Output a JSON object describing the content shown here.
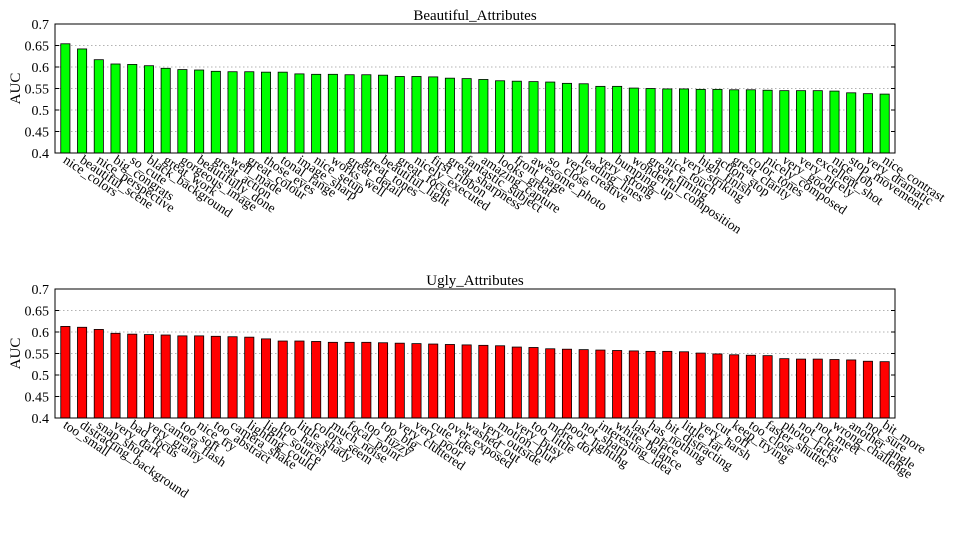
{
  "chart_data": [
    {
      "type": "bar",
      "title": "Beautiful_Attributes",
      "ylabel": "AUC",
      "xlabel": "",
      "ylim": [
        0.4,
        0.7
      ],
      "yticks": [
        "0.4",
        "0.45",
        "0.5",
        "0.55",
        "0.6",
        "0.65",
        "0.7"
      ],
      "grid": true,
      "color": "#00ff00",
      "categories": [
        "nice_colors",
        "beautiful_scene",
        "nice_perspective",
        "big_congrats",
        "so_cute",
        "black_background",
        "great_work",
        "gorgeous_image",
        "beautifully_done",
        "great_action",
        "well_made",
        "great_colour",
        "those_eyes",
        "tonal_range",
        "image_sharp",
        "nice_setup",
        "works_well",
        "great_detail",
        "great_tones",
        "beautiful_light",
        "great_focus",
        "nicely_executed",
        "first_ribbon",
        "great_sharpness",
        "fantastic_subject",
        "amazing_capture",
        "looks_great",
        "front_page",
        "awesome_photo",
        "so_close",
        "very_creative",
        "leading_lines",
        "very_strong",
        "bumping_up",
        "wonderful_composition",
        "great_timing",
        "nice_touch",
        "very_striking",
        "high_finish",
        "action_stop",
        "great_clarity",
        "color_tones",
        "nicely_composed",
        "very_good",
        "very_nicely",
        "excellent_shot",
        "nice_job",
        "stop_movement",
        "very_dramatic",
        "nice_contrast"
      ],
      "values": [
        0.654,
        0.642,
        0.617,
        0.607,
        0.606,
        0.603,
        0.597,
        0.594,
        0.593,
        0.59,
        0.589,
        0.589,
        0.588,
        0.588,
        0.584,
        0.583,
        0.583,
        0.582,
        0.582,
        0.581,
        0.578,
        0.578,
        0.577,
        0.574,
        0.573,
        0.571,
        0.568,
        0.567,
        0.566,
        0.565,
        0.562,
        0.561,
        0.555,
        0.555,
        0.551,
        0.55,
        0.549,
        0.549,
        0.548,
        0.548,
        0.547,
        0.547,
        0.546,
        0.545,
        0.545,
        0.545,
        0.544,
        0.54,
        0.538,
        0.537
      ]
    },
    {
      "type": "bar",
      "title": "Ugly_Attributes",
      "ylabel": "AUC",
      "xlabel": "",
      "ylim": [
        0.4,
        0.7
      ],
      "yticks": [
        "0.4",
        "0.45",
        "0.5",
        "0.55",
        "0.6",
        "0.65",
        "0.7"
      ],
      "grid": true,
      "color": "#ff0000",
      "categories": [
        "too_small",
        "distracting_background",
        "snap_shot",
        "very_dark",
        "bad_focus",
        "very_grainy",
        "camera_flash",
        "too_soft",
        "nice_try",
        "too_abstract",
        "camera_shake",
        "lighting_could",
        "light_source",
        "too_harsh",
        "little_shady",
        "colors_seem",
        "much_noise",
        "focal_point",
        "too_fuzzy",
        "too_big",
        "very_cluttered",
        "very_poor",
        "cute_idea",
        "over_exposed",
        "washed_out",
        "very_outside",
        "motion_blur",
        "very_busy",
        "too_little",
        "more_dof",
        "poor_lighting",
        "not_sharp",
        "interesting_idea",
        "white_balance",
        "last_place",
        "has_nothing",
        "bit_distracting",
        "little_far",
        "very_harsh",
        "cut_off",
        "keep_trying",
        "too_close",
        "faster_shutter",
        "photo_lacks",
        "not_clear",
        "not_meet",
        "wrong_challenge",
        "another_angle",
        "not_sure",
        "bit_more"
      ],
      "values": [
        0.613,
        0.611,
        0.606,
        0.597,
        0.595,
        0.594,
        0.593,
        0.591,
        0.591,
        0.59,
        0.589,
        0.588,
        0.584,
        0.579,
        0.579,
        0.578,
        0.576,
        0.576,
        0.576,
        0.575,
        0.574,
        0.573,
        0.572,
        0.571,
        0.57,
        0.569,
        0.568,
        0.565,
        0.564,
        0.561,
        0.56,
        0.559,
        0.558,
        0.557,
        0.556,
        0.555,
        0.555,
        0.554,
        0.551,
        0.549,
        0.547,
        0.546,
        0.545,
        0.538,
        0.537,
        0.537,
        0.536,
        0.535,
        0.532,
        0.531
      ]
    }
  ]
}
